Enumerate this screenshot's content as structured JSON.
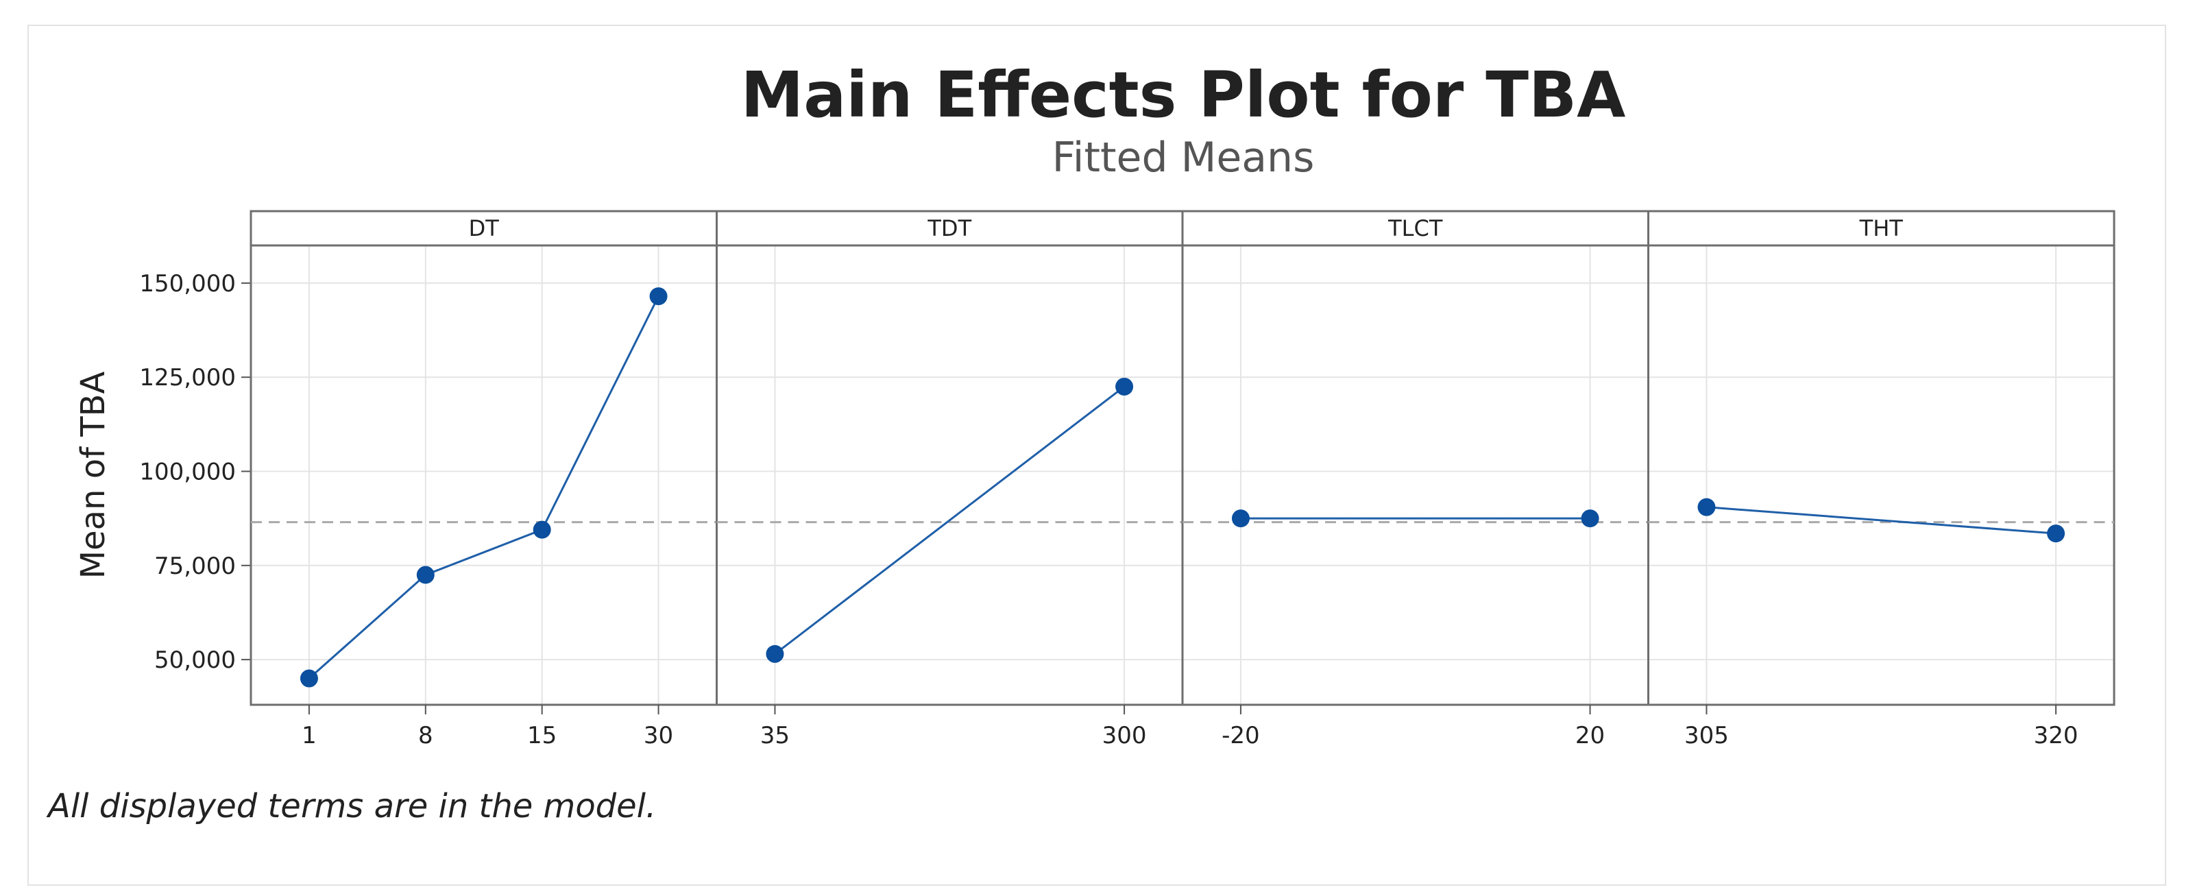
{
  "title": "Main Effects Plot for TBA",
  "subtitle": "Fitted Means",
  "footnote": "All displayed terms are in the model.",
  "colors": {
    "series": "#1f5fa8",
    "marker": "#0b4f9e",
    "mean_line": "#a9a9a9",
    "grid": "#e4e4e4",
    "panel_border": "#6e6e6e",
    "text": "#222222"
  },
  "chart_data": {
    "type": "line",
    "ylabel": "Mean of TBA",
    "ylim": [
      38000,
      160000
    ],
    "yticks": [
      50000,
      75000,
      100000,
      125000,
      150000
    ],
    "ytick_labels": [
      "50,000",
      "75,000",
      "100,000",
      "125,000",
      "150,000"
    ],
    "grand_mean": 86500,
    "grid": true,
    "panels": [
      {
        "name": "DT",
        "categories": [
          "1",
          "8",
          "15",
          "30"
        ],
        "values": [
          45000,
          72500,
          84500,
          146500
        ]
      },
      {
        "name": "TDT",
        "categories": [
          "35",
          "300"
        ],
        "values": [
          51500,
          122500
        ]
      },
      {
        "name": "TLCT",
        "categories": [
          "-20",
          "20"
        ],
        "values": [
          87500,
          87500
        ]
      },
      {
        "name": "THT",
        "categories": [
          "305",
          "320"
        ],
        "values": [
          90500,
          83500
        ]
      }
    ]
  }
}
